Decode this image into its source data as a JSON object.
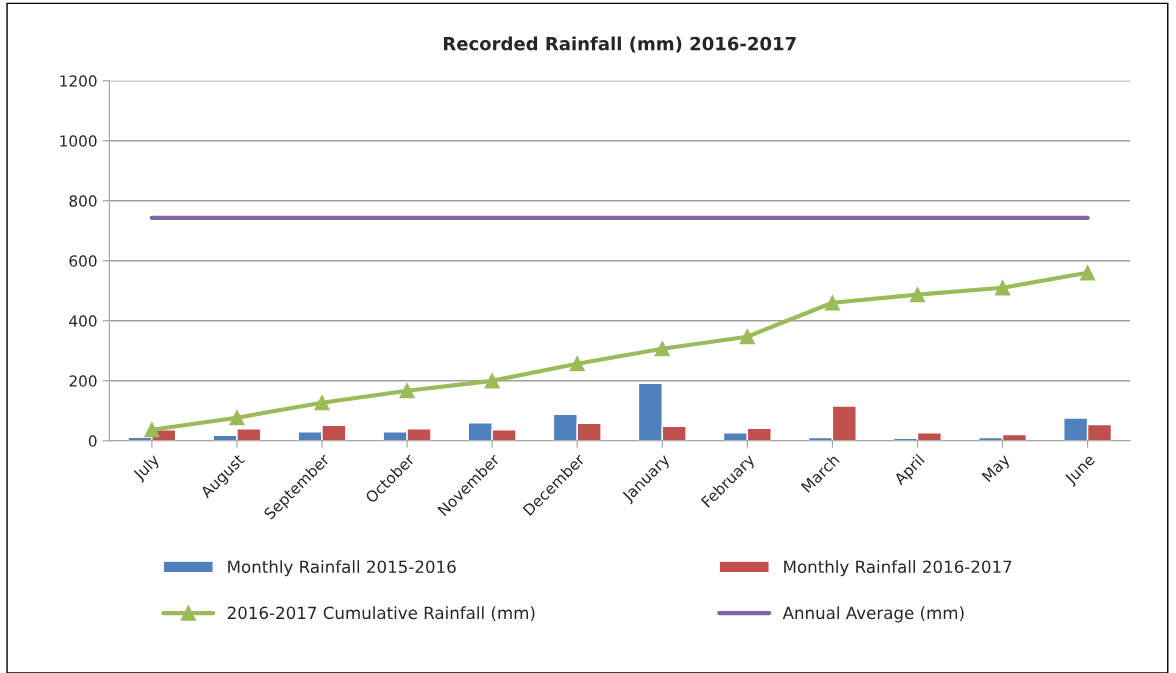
{
  "chart_data": {
    "type": "bar",
    "title": "Recorded Rainfall (mm) 2016-2017",
    "categories": [
      "July",
      "August",
      "September",
      "October",
      "November",
      "December",
      "January",
      "February",
      "March",
      "April",
      "May",
      "June"
    ],
    "series": [
      {
        "name": "Monthly Rainfall 2015-2016",
        "color": "#4f81bd",
        "values": [
          12,
          18,
          30,
          30,
          60,
          88,
          192,
          27,
          11,
          8,
          11,
          76
        ]
      },
      {
        "name": "Monthly Rainfall 2016-2017",
        "color": "#c0504d",
        "values": [
          37,
          40,
          52,
          40,
          37,
          58,
          48,
          42,
          116,
          27,
          21,
          54
        ]
      },
      {
        "name": "2016-2017 Cumulative Rainfall (mm)",
        "type": "line",
        "marker": "triangle",
        "color": "#9bbb59",
        "values": [
          37,
          77,
          127,
          167,
          200,
          257,
          307,
          347,
          460,
          487,
          510,
          560
        ]
      },
      {
        "name": "Annual Average (mm)",
        "type": "line",
        "marker": "none",
        "color": "#8064a2",
        "values": [
          743,
          743,
          743,
          743,
          743,
          743,
          743,
          743,
          743,
          743,
          743,
          743
        ]
      }
    ],
    "ylim": [
      0,
      1200
    ],
    "yticks": [
      0,
      200,
      400,
      600,
      800,
      1000,
      1200
    ],
    "grid": "y",
    "legend": "bottom"
  }
}
